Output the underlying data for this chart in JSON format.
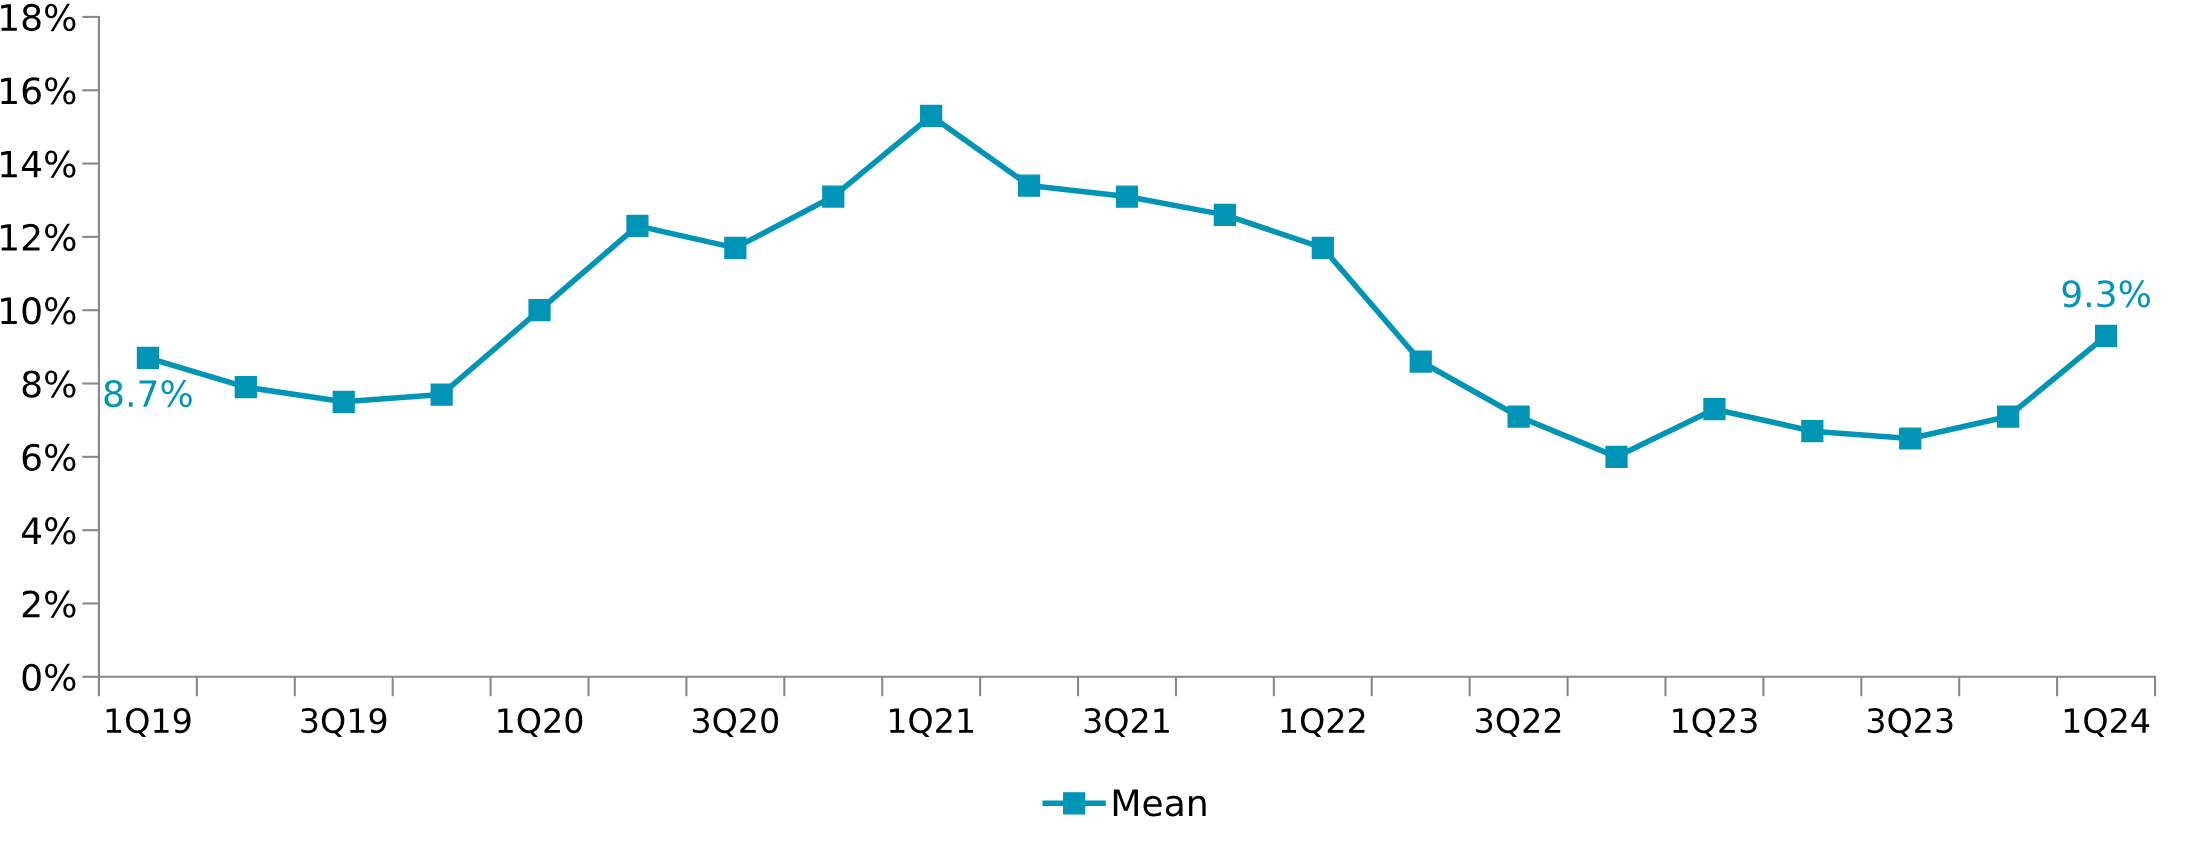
{
  "chart_data": {
    "type": "line",
    "categories": [
      "1Q19",
      null,
      "3Q19",
      null,
      "1Q20",
      null,
      "3Q20",
      null,
      "1Q21",
      null,
      "3Q21",
      null,
      "1Q22",
      null,
      "3Q22",
      null,
      "1Q23",
      null,
      "3Q23",
      null,
      "1Q24"
    ],
    "series": [
      {
        "name": "Mean",
        "color": "#0095b6",
        "values": [
          8.7,
          7.9,
          7.5,
          7.7,
          10.0,
          12.3,
          11.7,
          13.1,
          15.3,
          13.4,
          13.1,
          12.6,
          11.7,
          8.6,
          7.1,
          6.0,
          7.3,
          6.7,
          6.5,
          7.1,
          9.3
        ],
        "value_labels": [
          "8.7%",
          null,
          null,
          null,
          null,
          null,
          null,
          null,
          null,
          null,
          null,
          null,
          null,
          null,
          null,
          null,
          null,
          null,
          null,
          null,
          "9.3%"
        ]
      }
    ],
    "ylim": [
      0,
      18
    ],
    "yticks": [
      {
        "value": 0,
        "label": "0%"
      },
      {
        "value": 2,
        "label": "2%"
      },
      {
        "value": 4,
        "label": "4%"
      },
      {
        "value": 6,
        "label": "6%"
      },
      {
        "value": 8,
        "label": "8%"
      },
      {
        "value": 10,
        "label": "10%"
      },
      {
        "value": 12,
        "label": "12%"
      },
      {
        "value": 14,
        "label": "14%"
      },
      {
        "value": 16,
        "label": "16%"
      },
      {
        "value": 18,
        "label": "18%"
      }
    ],
    "grid": false,
    "legend": "bottom",
    "marker": "square",
    "line_style": "solid"
  }
}
